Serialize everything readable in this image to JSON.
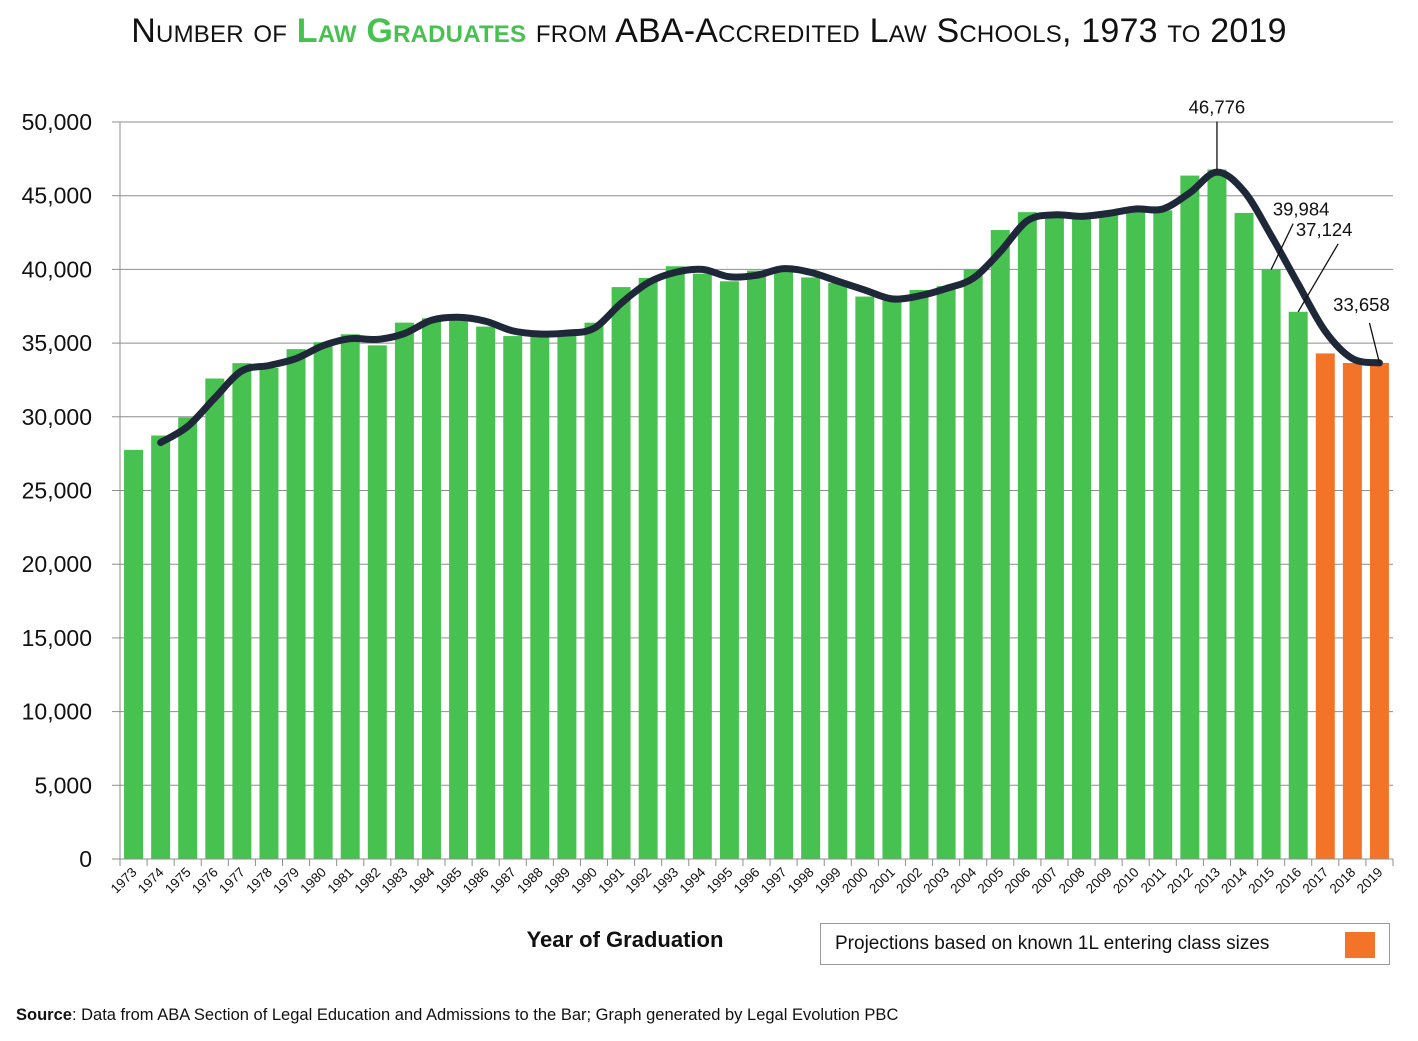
{
  "title": {
    "prefix": "Number of ",
    "highlight": "Law Graduates",
    "suffix": " from ABA-Accredited Law Schools, 1973 to 2019"
  },
  "colors": {
    "actual": "#47c14f",
    "projected": "#f37428",
    "trend": "#1f2838",
    "highlight": "#47c14f"
  },
  "legend": {
    "text": "Projections based on known 1L entering class sizes"
  },
  "source": {
    "label": "Source",
    "text": ": Data from ABA Section of Legal Education and Admissions to the Bar; Graph generated by Legal Evolution PBC"
  },
  "chart_data": {
    "type": "bar",
    "title": "Number of Law Graduates from ABA-Accredited Law Schools, 1973 to 2019",
    "xlabel": "Year of Graduation",
    "ylabel": "",
    "ylim": [
      0,
      50000
    ],
    "yticks": [
      0,
      5000,
      10000,
      15000,
      20000,
      25000,
      30000,
      35000,
      40000,
      45000,
      50000
    ],
    "ytick_labels": [
      "0",
      "5,000",
      "10,000",
      "15,000",
      "20,000",
      "25,000",
      "30,000",
      "35,000",
      "40,000",
      "45,000",
      "50,000"
    ],
    "grid": true,
    "categories": [
      "1973",
      "1974",
      "1975",
      "1976",
      "1977",
      "1978",
      "1979",
      "1980",
      "1981",
      "1982",
      "1983",
      "1984",
      "1985",
      "1986",
      "1987",
      "1988",
      "1989",
      "1990",
      "1991",
      "1992",
      "1993",
      "1994",
      "1995",
      "1996",
      "1997",
      "1998",
      "1999",
      "2000",
      "2001",
      "2002",
      "2003",
      "2004",
      "2005",
      "2006",
      "2007",
      "2008",
      "2009",
      "2010",
      "2011",
      "2012",
      "2013",
      "2014",
      "2015",
      "2016",
      "2017",
      "2018",
      "2019"
    ],
    "series": [
      {
        "kind": "bar",
        "values": [
          27756,
          28729,
          29961,
          32597,
          33640,
          33317,
          34590,
          35059,
          35598,
          34846,
          36389,
          36687,
          36829,
          36121,
          35478,
          35701,
          35520,
          36385,
          38800,
          39425,
          40213,
          39710,
          39191,
          39920,
          40114,
          39455,
          39071,
          38157,
          37909,
          38605,
          38863,
          40023,
          42673,
          43883,
          43518,
          43588,
          43832,
          43979,
          44004,
          46364,
          46776,
          43832,
          39984,
          37124,
          34300,
          33650,
          33658
        ],
        "projected_from_index": 44
      },
      {
        "kind": "line",
        "note": "trend line",
        "start_index": 1,
        "values": [
          null,
          28250,
          29350,
          31280,
          33120,
          33480,
          33950,
          34830,
          35300,
          35250,
          35650,
          36550,
          36750,
          36480,
          35830,
          35620,
          35680,
          36000,
          37700,
          39100,
          39800,
          40000,
          39500,
          39600,
          40050,
          39800,
          39200,
          38600,
          38000,
          38200,
          38700,
          39400,
          41200,
          43300,
          43700,
          43600,
          43800,
          44100,
          44100,
          45200,
          46600,
          45300,
          42300,
          39000,
          35800,
          33950,
          33658
        ]
      }
    ],
    "annotations": [
      {
        "category": "2013",
        "label": "46,776"
      },
      {
        "category": "2015",
        "label": "39,984"
      },
      {
        "category": "2016",
        "label": "37,124"
      },
      {
        "category": "2019",
        "label": "33,658"
      }
    ]
  }
}
